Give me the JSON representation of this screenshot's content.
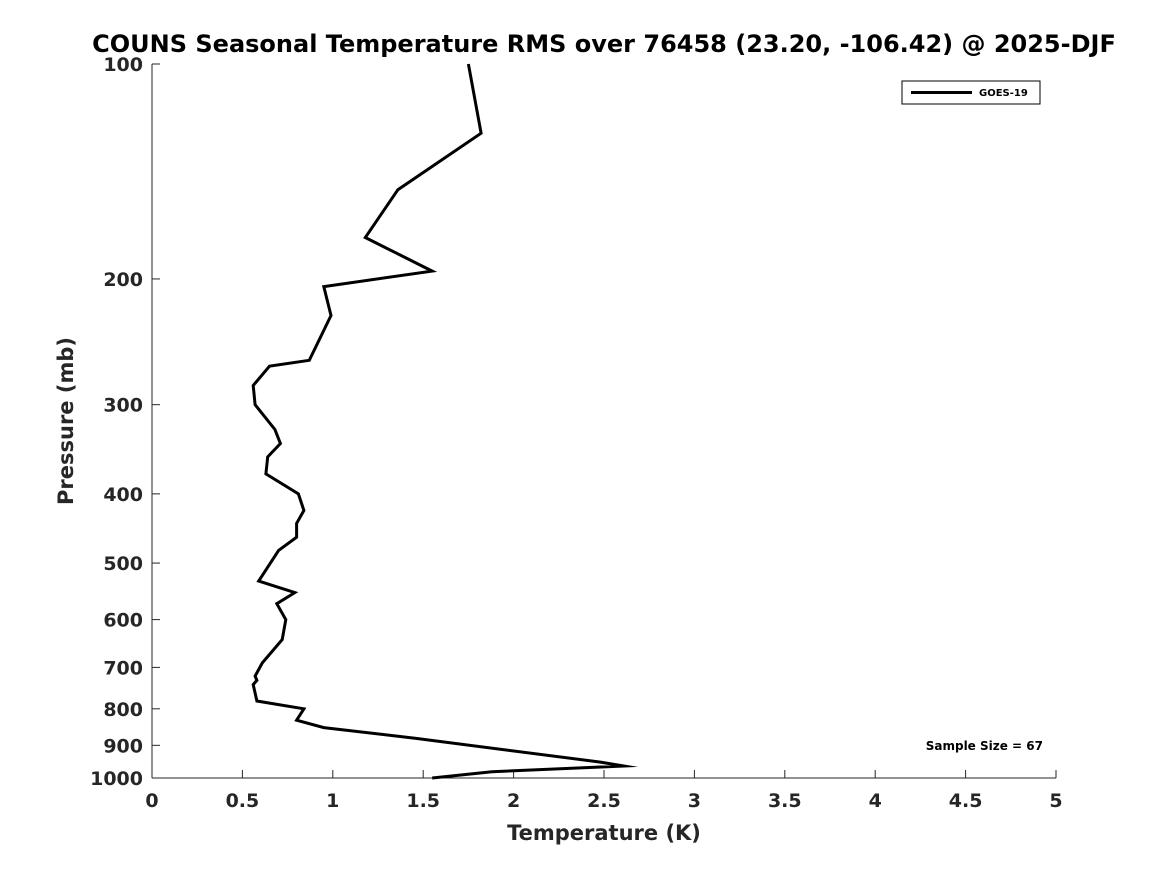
{
  "chart_data": {
    "type": "line",
    "title": "COUNS Seasonal Temperature RMS over 76458 (23.20, -106.42) @ 2025-DJF",
    "xlabel": "Temperature (K)",
    "ylabel": "Pressure (mb)",
    "xlim": [
      0,
      5
    ],
    "ylim": [
      1000,
      100
    ],
    "yscale": "log",
    "y_reversed": true,
    "grid": false,
    "x_ticks": [
      0,
      0.5,
      1,
      1.5,
      2,
      2.5,
      3,
      3.5,
      4,
      4.5,
      5
    ],
    "x_tick_labels": [
      "0",
      "0.5",
      "1",
      "1.5",
      "2",
      "2.5",
      "3",
      "3.5",
      "4",
      "4.5",
      "5"
    ],
    "y_ticks": [
      100,
      200,
      300,
      400,
      500,
      600,
      700,
      800,
      900,
      1000
    ],
    "y_tick_labels": [
      "100",
      "200",
      "300",
      "400",
      "500",
      "600",
      "700",
      "800",
      "900",
      "1000"
    ],
    "legend": {
      "placement": "top-right",
      "entries": [
        "GOES-19"
      ]
    },
    "series": [
      {
        "name": "GOES-19",
        "color": "#000000",
        "x": [
          1.75,
          1.82,
          1.36,
          1.18,
          1.55,
          0.95,
          0.99,
          0.87,
          0.65,
          0.56,
          0.57,
          0.68,
          0.71,
          0.64,
          0.63,
          0.81,
          0.84,
          0.8,
          0.8,
          0.7,
          0.59,
          0.79,
          0.69,
          0.74,
          0.72,
          0.61,
          0.57,
          0.58,
          0.56,
          0.58,
          0.84,
          0.8,
          0.95,
          1.46,
          2.48,
          2.61,
          1.88,
          1.55
        ],
        "y": [
          100,
          125,
          150,
          175,
          195,
          205,
          225,
          260,
          265,
          282,
          300,
          325,
          340,
          355,
          375,
          400,
          422,
          440,
          460,
          480,
          530,
          550,
          570,
          600,
          640,
          690,
          720,
          730,
          740,
          780,
          800,
          830,
          850,
          880,
          950,
          962,
          980,
          1000
        ]
      }
    ],
    "annotations": [
      "Sample Size = 67"
    ]
  }
}
